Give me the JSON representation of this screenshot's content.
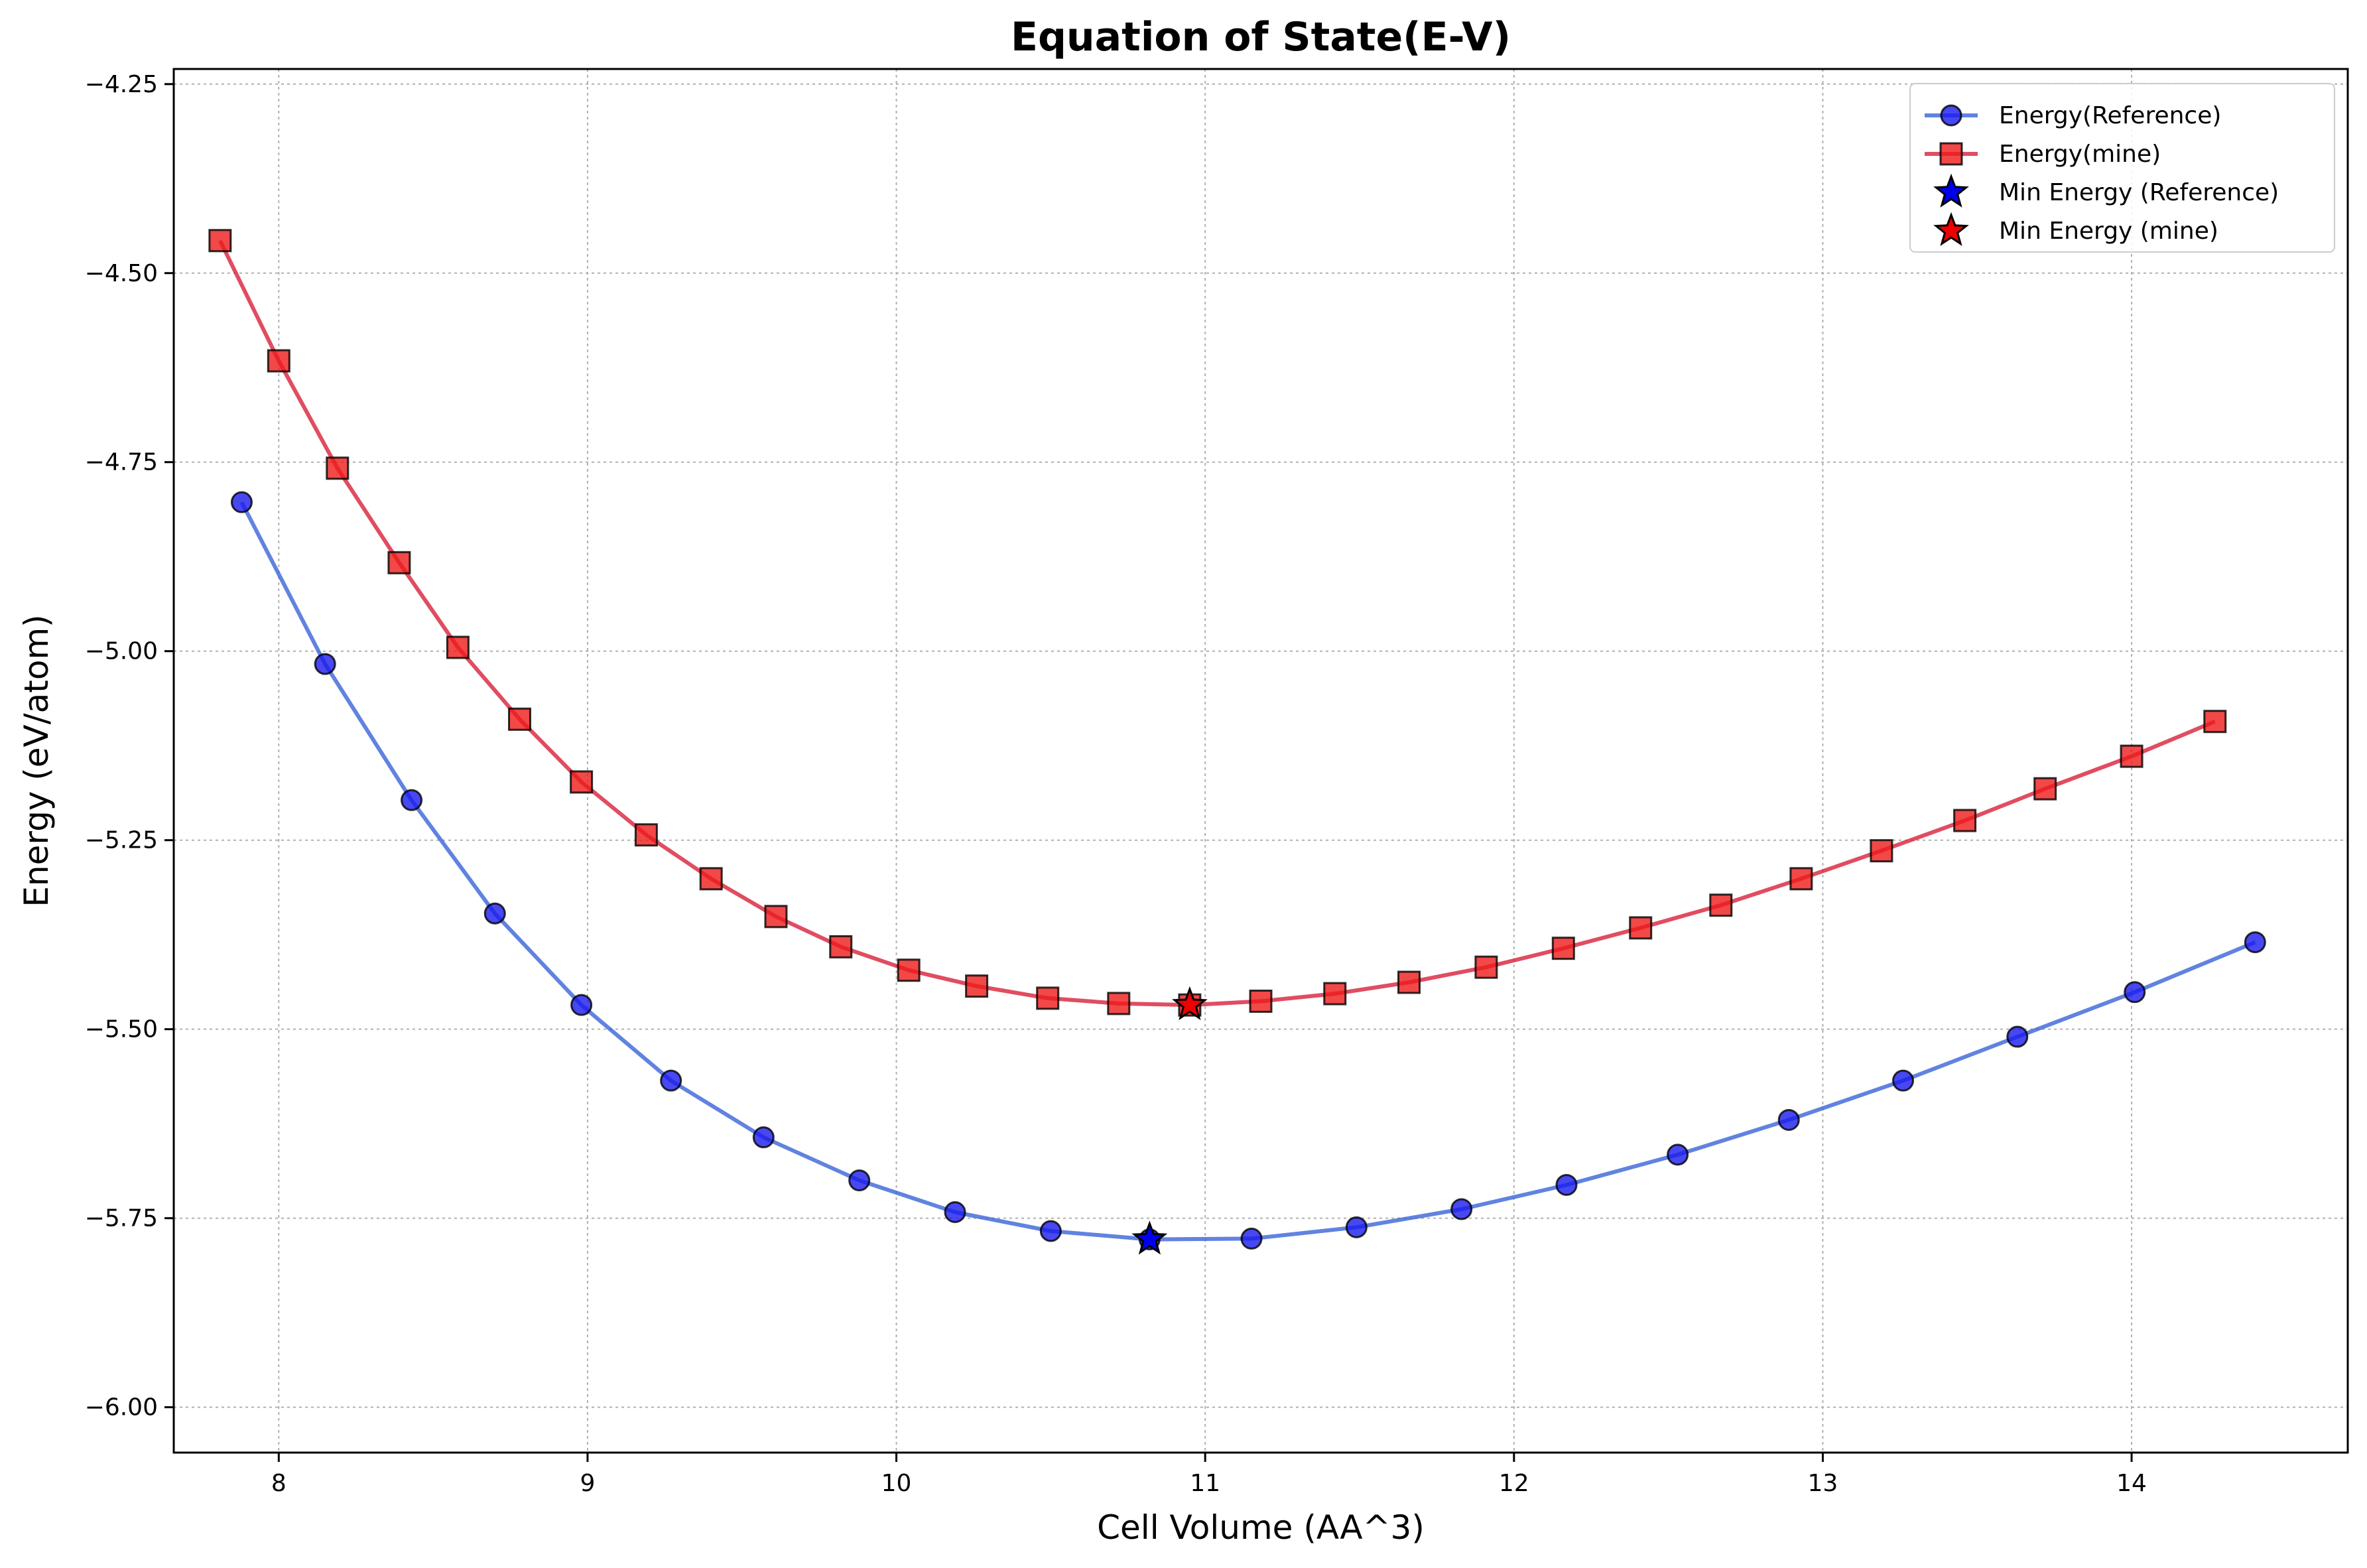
{
  "chart_data": {
    "type": "line",
    "title": "Equation of State(E-V)",
    "xlabel": "Cell Volume (AA^3)",
    "ylabel": "Energy (eV/atom)",
    "xlim": [
      7.66,
      14.7
    ],
    "ylim": [
      -6.06,
      -4.23
    ],
    "xticks": [
      8,
      9,
      10,
      11,
      12,
      13,
      14
    ],
    "yticks": [
      -6.0,
      -5.75,
      -5.5,
      -5.25,
      -5.0,
      -4.75,
      -4.5,
      -4.25
    ],
    "xtick_labels": [
      "8",
      "9",
      "10",
      "11",
      "12",
      "13",
      "14"
    ],
    "ytick_labels": [
      "−6.00",
      "−5.75",
      "−5.50",
      "−5.25",
      "−5.00",
      "−4.75",
      "−4.50",
      "−4.25"
    ],
    "grid": true,
    "legend_position": "top-right",
    "series": [
      {
        "name": "Energy(Reference)",
        "color": "#3a64d8",
        "marker": "circle",
        "marker_color": "#1a1aee",
        "x": [
          7.88,
          8.15,
          8.43,
          8.7,
          8.98,
          9.27,
          9.57,
          9.88,
          10.19,
          10.5,
          10.82,
          11.15,
          11.49,
          11.83,
          12.17,
          12.53,
          12.89,
          13.26,
          13.63,
          14.01,
          14.4
        ],
        "y": [
          -4.803,
          -5.017,
          -5.197,
          -5.347,
          -5.468,
          -5.568,
          -5.643,
          -5.7,
          -5.742,
          -5.767,
          -5.778,
          -5.777,
          -5.762,
          -5.738,
          -5.706,
          -5.666,
          -5.62,
          -5.568,
          -5.51,
          -5.451,
          -5.385
        ]
      },
      {
        "name": "Energy(mine)",
        "color": "#d8203a",
        "marker": "square",
        "marker_color": "#ee1a1a",
        "x": [
          7.81,
          8.0,
          8.19,
          8.39,
          8.58,
          8.78,
          8.98,
          9.19,
          9.4,
          9.61,
          9.82,
          10.04,
          10.26,
          10.49,
          10.72,
          10.95,
          11.18,
          11.42,
          11.66,
          11.91,
          12.16,
          12.41,
          12.67,
          12.93,
          13.19,
          13.46,
          13.72,
          14.0,
          14.27
        ],
        "y": [
          -4.457,
          -4.616,
          -4.758,
          -4.883,
          -4.995,
          -5.09,
          -5.173,
          -5.243,
          -5.301,
          -5.351,
          -5.391,
          -5.422,
          -5.443,
          -5.459,
          -5.466,
          -5.468,
          -5.463,
          -5.453,
          -5.438,
          -5.418,
          -5.393,
          -5.366,
          -5.336,
          -5.301,
          -5.264,
          -5.224,
          -5.182,
          -5.139,
          -5.093
        ]
      }
    ],
    "min_points": [
      {
        "name": "Min Energy (Reference)",
        "x": 10.82,
        "y": -5.778,
        "color": "#0000ee"
      },
      {
        "name": "Min Energy (mine)",
        "x": 10.95,
        "y": -5.468,
        "color": "#ee0000"
      }
    ]
  }
}
